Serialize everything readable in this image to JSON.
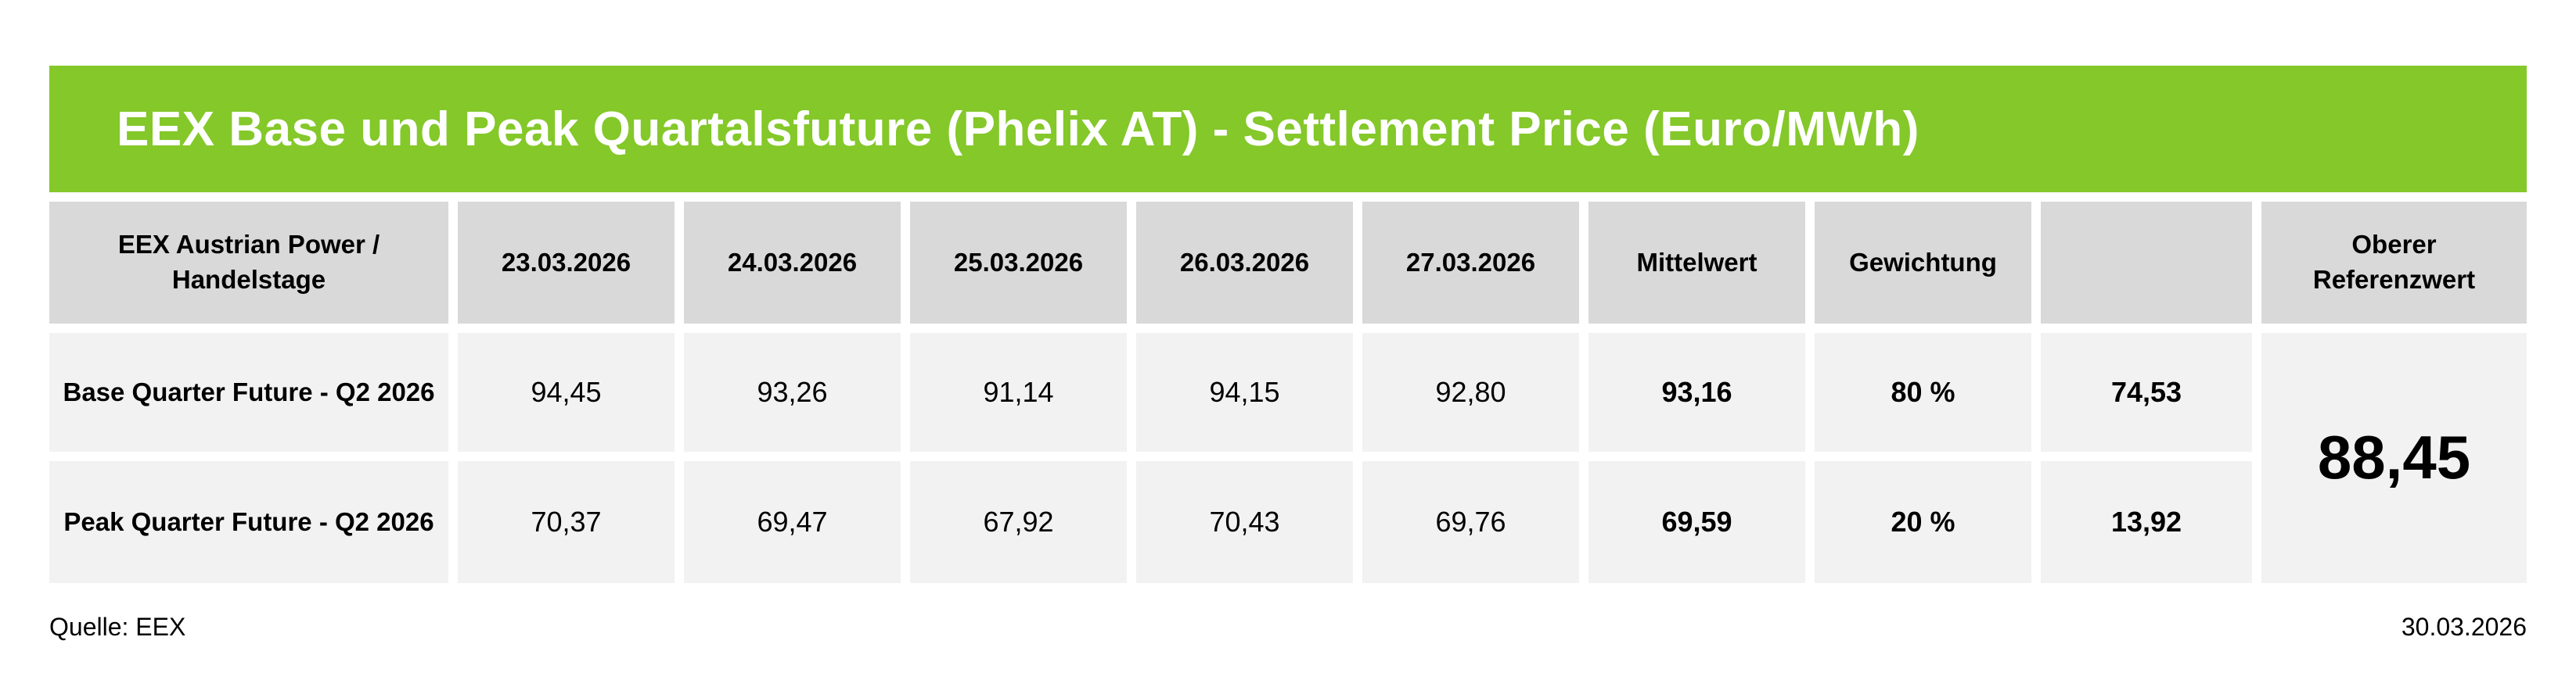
{
  "title": "EEX Base und Peak Quartalsfuture (Phelix AT) - Settlement Price (Euro/MWh)",
  "colors": {
    "banner": "#84c82a",
    "header_cell": "#d9d9d9",
    "body_cell": "#f2f2f2"
  },
  "table": {
    "headers": [
      "EEX Austrian Power / Handelstage",
      "23.03.2026",
      "24.03.2026",
      "25.03.2026",
      "26.03.2026",
      "27.03.2026",
      "Mittelwert",
      "Gewichtung",
      "",
      "Oberer Referenzwert"
    ],
    "rows": [
      {
        "label": "Base Quarter Future - Q2 2026",
        "values": [
          "94,45",
          "93,26",
          "91,14",
          "94,15",
          "92,80"
        ],
        "mittelwert": "93,16",
        "gewichtung": "80 %",
        "weighted": "74,53"
      },
      {
        "label": "Peak Quarter Future - Q2 2026",
        "values": [
          "70,37",
          "69,47",
          "67,92",
          "70,43",
          "69,76"
        ],
        "mittelwert": "69,59",
        "gewichtung": "20 %",
        "weighted": "13,92"
      }
    ],
    "oberer_referenzwert": "88,45"
  },
  "footer": {
    "source": "Quelle: EEX",
    "date": "30.03.2026"
  }
}
